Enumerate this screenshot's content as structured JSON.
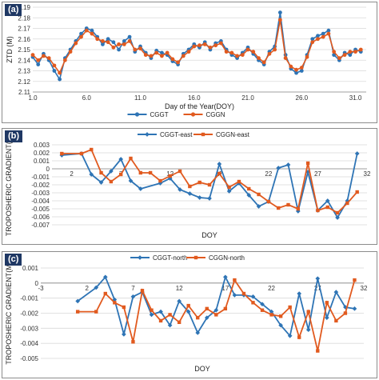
{
  "colors": {
    "blue": "#2e74b5",
    "orange": "#e15a1f",
    "grid": "#d9d9d9",
    "label_bg": "#1f3864"
  },
  "chart_data": [
    {
      "panel": "(a)",
      "type": "line",
      "xlabel": "Day of the Year(DOY)",
      "ylabel": "ZTD (M)",
      "xlim": [
        1,
        32
      ],
      "ylim": [
        2.11,
        2.19
      ],
      "yticks": [
        "2.19",
        "2.18",
        "2.17",
        "2.16",
        "2.15",
        "2.14",
        "2.13",
        "2.12",
        "2.11"
      ],
      "xticks": [
        "1.0",
        "6.0",
        "11.0",
        "16.0",
        "21.0",
        "26.0",
        "31.0"
      ],
      "legend": [
        "CGGT",
        "CGGN"
      ],
      "legend_position": "bottom",
      "series": [
        {
          "name": "CGGT",
          "color": "blue",
          "x": [
            1,
            1.5,
            2,
            2.5,
            3,
            3.5,
            4,
            4.5,
            5,
            5.5,
            6,
            6.5,
            7,
            7.5,
            8,
            8.5,
            9,
            9.5,
            10,
            10.5,
            11,
            11.5,
            12,
            12.5,
            13,
            13.5,
            14,
            14.5,
            15,
            15.5,
            16,
            16.5,
            17,
            17.5,
            18,
            18.5,
            19,
            19.5,
            20,
            20.5,
            21,
            21.5,
            22,
            22.5,
            23,
            23.5,
            24,
            24.5,
            25,
            25.5,
            26,
            26.5,
            27,
            27.5,
            28,
            28.5,
            29,
            29.5,
            30,
            30.5,
            31,
            31.5
          ],
          "y": [
            2.143,
            2.136,
            2.146,
            2.14,
            2.13,
            2.122,
            2.142,
            2.15,
            2.158,
            2.165,
            2.17,
            2.168,
            2.162,
            2.155,
            2.16,
            2.157,
            2.15,
            2.158,
            2.162,
            2.148,
            2.153,
            2.147,
            2.142,
            2.149,
            2.147,
            2.145,
            2.139,
            2.136,
            2.146,
            2.15,
            2.155,
            2.152,
            2.157,
            2.15,
            2.156,
            2.158,
            2.15,
            2.145,
            2.142,
            2.147,
            2.152,
            2.146,
            2.14,
            2.136,
            2.148,
            2.153,
            2.185,
            2.145,
            2.132,
            2.128,
            2.13,
            2.145,
            2.16,
            2.163,
            2.165,
            2.168,
            2.145,
            2.14,
            2.147,
            2.145,
            2.15,
            2.148
          ]
        },
        {
          "name": "CGGN",
          "color": "orange",
          "x": [
            1,
            1.5,
            2,
            2.5,
            3,
            3.5,
            4,
            4.5,
            5,
            5.5,
            6,
            6.5,
            7,
            7.5,
            8,
            8.5,
            9,
            9.5,
            10,
            10.5,
            11,
            11.5,
            12,
            12.5,
            13,
            13.5,
            14,
            14.5,
            15,
            15.5,
            16,
            16.5,
            17,
            17.5,
            18,
            18.5,
            19,
            19.5,
            20,
            20.5,
            21,
            21.5,
            22,
            22.5,
            23,
            23.5,
            24,
            24.5,
            25,
            25.5,
            26,
            26.5,
            27,
            27.5,
            28,
            28.5,
            29,
            29.5,
            30,
            30.5,
            31,
            31.5
          ],
          "y": [
            2.145,
            2.14,
            2.144,
            2.142,
            2.135,
            2.128,
            2.14,
            2.148,
            2.156,
            2.162,
            2.168,
            2.165,
            2.16,
            2.158,
            2.157,
            2.152,
            2.155,
            2.155,
            2.158,
            2.15,
            2.151,
            2.145,
            2.144,
            2.147,
            2.144,
            2.147,
            2.141,
            2.138,
            2.144,
            2.148,
            2.153,
            2.154,
            2.155,
            2.152,
            2.154,
            2.156,
            2.148,
            2.147,
            2.144,
            2.145,
            2.15,
            2.148,
            2.142,
            2.138,
            2.146,
            2.15,
            2.178,
            2.142,
            2.134,
            2.131,
            2.133,
            2.143,
            2.157,
            2.16,
            2.162,
            2.165,
            2.148,
            2.142,
            2.145,
            2.148,
            2.148,
            2.15
          ]
        }
      ]
    },
    {
      "panel": "(b)",
      "type": "line",
      "xlabel": "DOY",
      "ylabel": "TROPOSHERIC GRADIENT(M)",
      "xlim": [
        0,
        32
      ],
      "ylim": [
        -0.007,
        0.003
      ],
      "yticks": [
        "0.003",
        "0.002",
        "0.001",
        "0",
        "-0.001",
        "-0.002",
        "-0.003",
        "-0.004",
        "-0.005",
        "-0.006",
        "-0.007"
      ],
      "xticks": [
        "2",
        "7",
        "12",
        "17",
        "22",
        "27",
        "32"
      ],
      "xtick_values": [
        2,
        7,
        12,
        17,
        22,
        27,
        32
      ],
      "legend": [
        "CGGT-east",
        "CGGN-east"
      ],
      "legend_position": "top",
      "series": [
        {
          "name": "CGGT-east",
          "color": "blue",
          "x": [
            1,
            3,
            4,
            5,
            6,
            7,
            8,
            9,
            11,
            12,
            13,
            14,
            15,
            16,
            17,
            18,
            19,
            20,
            21,
            22,
            23,
            24,
            25,
            26,
            27,
            28,
            29,
            30,
            31
          ],
          "y": [
            0.0017,
            0.0019,
            -0.0007,
            -0.0017,
            -0.0003,
            0.0012,
            -0.0015,
            -0.0025,
            -0.0018,
            -0.0012,
            -0.0026,
            -0.0031,
            -0.0036,
            -0.0037,
            0.0006,
            -0.0028,
            -0.0018,
            -0.0033,
            -0.0047,
            -0.0041,
            0.0001,
            0.0005,
            -0.0053,
            -0.0004,
            -0.0052,
            -0.004,
            -0.0061,
            -0.004,
            0.0019
          ]
        },
        {
          "name": "CGGN-east",
          "color": "orange",
          "x": [
            1,
            3,
            4,
            5,
            6,
            7,
            8,
            9,
            10,
            11,
            12,
            13,
            14,
            15,
            16,
            17,
            18,
            19,
            20,
            21,
            22,
            23,
            24,
            25,
            26,
            27,
            28,
            29,
            30,
            31
          ],
          "y": [
            0.0019,
            0.0019,
            0.0024,
            -0.0005,
            -0.0016,
            -0.0007,
            0.0013,
            -0.0005,
            -0.0005,
            -0.0015,
            -0.0009,
            -0.0003,
            -0.0022,
            -0.0017,
            -0.002,
            -0.0006,
            -0.0023,
            -0.0016,
            -0.0025,
            -0.0032,
            -0.0041,
            -0.0049,
            -0.0045,
            -0.005,
            0.0007,
            -0.0052,
            -0.0048,
            -0.0055,
            -0.0043,
            -0.0029
          ]
        }
      ]
    },
    {
      "panel": "(c)",
      "type": "line",
      "xlabel": "DOY",
      "ylabel": "TROPOSHERIC GRADIENT(M)",
      "xlim": [
        -3,
        32
      ],
      "ylim": [
        -0.005,
        0.001
      ],
      "yticks": [
        "0.001",
        "0",
        "-0.001",
        "-0.002",
        "-0.003",
        "-0.004",
        "-0.005"
      ],
      "xticks": [
        "-3",
        "2",
        "7",
        "12",
        "17",
        "22",
        "27",
        "32"
      ],
      "xtick_values": [
        -3,
        2,
        7,
        12,
        17,
        22,
        27,
        32
      ],
      "legend": [
        "CGGT-north",
        "CGGN-north"
      ],
      "legend_position": "top",
      "series": [
        {
          "name": "CGGT-north",
          "color": "blue",
          "x": [
            1,
            3,
            4,
            5,
            6,
            7,
            8,
            9,
            10,
            11,
            12,
            13,
            14,
            15,
            16,
            17,
            18,
            19,
            20,
            21,
            22,
            23,
            24,
            25,
            26,
            27,
            28,
            29,
            30,
            31
          ],
          "y": [
            -0.0012,
            -0.0003,
            0.0004,
            -0.0011,
            -0.0034,
            -0.0009,
            -0.0006,
            -0.0021,
            -0.0019,
            -0.0028,
            -0.0012,
            -0.0019,
            -0.0033,
            -0.0023,
            -0.0018,
            0.0004,
            -0.0008,
            -0.0008,
            -0.0009,
            -0.0014,
            -0.0019,
            -0.0028,
            -0.0035,
            -0.0007,
            -0.0031,
            0.0003,
            -0.0023,
            -0.0006,
            -0.0016,
            -0.0017
          ]
        },
        {
          "name": "CGGN-north",
          "color": "orange",
          "x": [
            1,
            3,
            4,
            5,
            6,
            7,
            8,
            9,
            10,
            11,
            12,
            13,
            14,
            15,
            16,
            17,
            18,
            19,
            20,
            21,
            22,
            23,
            24,
            25,
            26,
            27,
            28,
            29,
            30,
            31
          ],
          "y": [
            -0.0019,
            -0.0019,
            -0.0007,
            -0.0013,
            -0.0016,
            -0.0039,
            -0.0005,
            -0.0018,
            -0.0025,
            -0.0021,
            -0.0026,
            -0.0015,
            -0.0023,
            -0.0017,
            -0.0021,
            -0.0017,
            0.0002,
            -0.0007,
            -0.0013,
            -0.0018,
            -0.0021,
            -0.0022,
            -0.0016,
            -0.0036,
            -0.0019,
            -0.0045,
            -0.0013,
            -0.0025,
            -0.002,
            0.0002
          ]
        }
      ]
    }
  ]
}
